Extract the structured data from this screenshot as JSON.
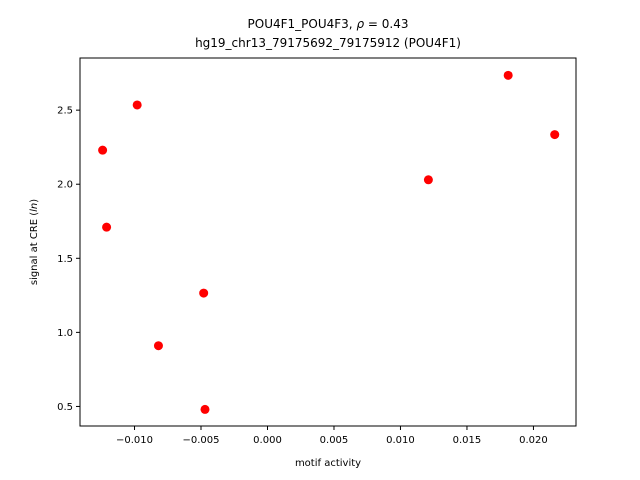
{
  "chart_data": {
    "type": "scatter",
    "title_line1_prefix": "POU4F1_POU4F3, ",
    "title_line1_rho": "ρ",
    "title_line1_suffix": " = 0.43",
    "title_line2": "hg19_chr13_79175692_79175912 (POU4F1)",
    "xlabel": "motif activity",
    "ylabel_prefix": "signal at CRE (",
    "ylabel_italic": "ln",
    "ylabel_suffix": ")",
    "xlim": [
      -0.0141,
      0.0232
    ],
    "ylim": [
      0.368,
      2.852
    ],
    "xticks": [
      -0.01,
      -0.005,
      0.0,
      0.005,
      0.01,
      0.015,
      0.02
    ],
    "xtick_labels": [
      "−0.010",
      "−0.005",
      "0.000",
      "0.005",
      "0.010",
      "0.015",
      "0.020"
    ],
    "yticks": [
      0.5,
      1.0,
      1.5,
      2.0,
      2.5
    ],
    "ytick_labels": [
      "0.5",
      "1.0",
      "1.5",
      "2.0",
      "2.5"
    ],
    "marker_color": "#ff0000",
    "grid": false,
    "points": [
      {
        "x": -0.0124,
        "y": 2.23
      },
      {
        "x": -0.0121,
        "y": 1.71
      },
      {
        "x": -0.0098,
        "y": 2.535
      },
      {
        "x": -0.0082,
        "y": 0.91
      },
      {
        "x": -0.0048,
        "y": 1.265
      },
      {
        "x": -0.0047,
        "y": 0.48
      },
      {
        "x": 0.0121,
        "y": 2.03
      },
      {
        "x": 0.0181,
        "y": 2.735
      },
      {
        "x": 0.0216,
        "y": 2.335
      }
    ]
  }
}
